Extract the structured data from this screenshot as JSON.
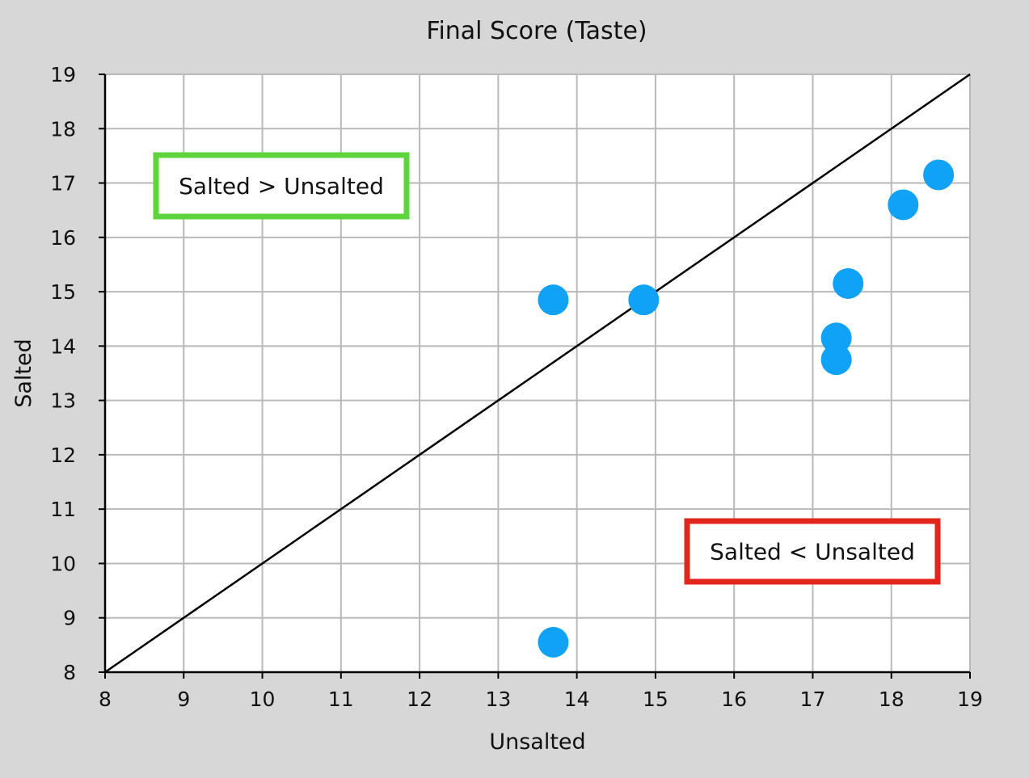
{
  "chart_data": {
    "type": "scatter",
    "title": "Final Score (Taste)",
    "xlabel": "Unsalted",
    "ylabel": "Salted",
    "xlim": [
      8,
      19
    ],
    "ylim": [
      8,
      19
    ],
    "xticks": [
      8,
      9,
      10,
      11,
      12,
      13,
      14,
      15,
      16,
      17,
      18,
      19
    ],
    "yticks": [
      8,
      9,
      10,
      11,
      12,
      13,
      14,
      15,
      16,
      17,
      18,
      19
    ],
    "grid": true,
    "reference_line": {
      "from": [
        8,
        8
      ],
      "to": [
        19,
        19
      ]
    },
    "series": [
      {
        "points": [
          {
            "x": 13.7,
            "y": 14.85
          },
          {
            "x": 14.85,
            "y": 14.85
          },
          {
            "x": 17.3,
            "y": 14.15
          },
          {
            "x": 17.3,
            "y": 13.75
          },
          {
            "x": 17.45,
            "y": 15.15
          },
          {
            "x": 18.15,
            "y": 16.6
          },
          {
            "x": 18.6,
            "y": 17.15
          },
          {
            "x": 13.7,
            "y": 8.55
          }
        ]
      }
    ],
    "annotations": [
      {
        "text": "Salted > Unsalted",
        "position": "upper-left",
        "border_color": "#5ed43c"
      },
      {
        "text": "Salted < Unsalted",
        "position": "lower-right",
        "border_color": "#e3261b"
      }
    ],
    "colors": {
      "points": "#0fa2f6",
      "background": "#d7d7d7",
      "plot_area": "#ffffff",
      "grid": "#b9b9b9",
      "line": "#000000"
    }
  }
}
